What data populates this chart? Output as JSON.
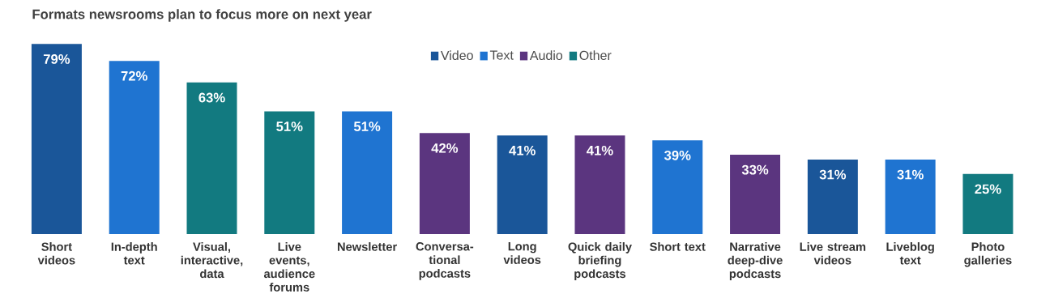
{
  "chart_data": {
    "type": "bar",
    "title": "Formats newsrooms plan to focus more on next year",
    "categories": [
      "Short videos",
      "In-depth text",
      "Visual, interactive, data",
      "Live events, audience forums",
      "Newsletter",
      "Conversa-tional podcasts",
      "Long videos",
      "Quick daily briefing podcasts",
      "Short text",
      "Narrative deep-dive podcasts",
      "Live stream videos",
      "Liveblog text",
      "Photo galleries"
    ],
    "series": [
      {
        "name": "Video",
        "color": "#1a5699",
        "values": [
          79,
          null,
          null,
          null,
          null,
          null,
          41,
          null,
          null,
          null,
          31,
          null,
          null
        ],
        "value_labels": [
          "79%",
          null,
          null,
          null,
          null,
          null,
          "41%",
          null,
          null,
          null,
          "31%",
          null,
          null
        ]
      },
      {
        "name": "Text",
        "color": "#1f74d1",
        "values": [
          null,
          72,
          null,
          null,
          51,
          null,
          null,
          null,
          39,
          null,
          null,
          31,
          null
        ],
        "value_labels": [
          null,
          "72%",
          null,
          null,
          "51%",
          null,
          null,
          null,
          "39%",
          null,
          null,
          "31%",
          null
        ]
      },
      {
        "name": "Audio",
        "color": "#5b357f",
        "values": [
          null,
          null,
          null,
          null,
          null,
          42,
          null,
          41,
          null,
          33,
          null,
          null,
          null
        ],
        "value_labels": [
          null,
          null,
          null,
          null,
          null,
          "42%",
          null,
          "41%",
          null,
          "33%",
          null,
          null,
          null
        ]
      },
      {
        "name": "Other",
        "color": "#127a80",
        "values": [
          null,
          null,
          63,
          51,
          null,
          null,
          null,
          null,
          null,
          null,
          null,
          null,
          25
        ],
        "value_labels": [
          null,
          null,
          "63%",
          "51%",
          null,
          null,
          null,
          null,
          null,
          null,
          null,
          null,
          "25%"
        ]
      }
    ],
    "legend": "top"
  }
}
